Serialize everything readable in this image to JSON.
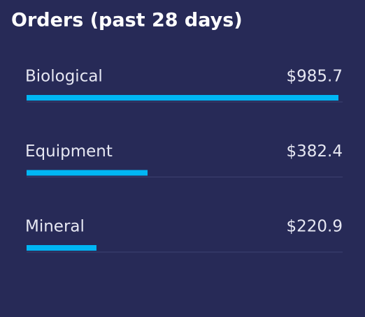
{
  "chart_data": {
    "type": "bar",
    "orientation": "horizontal",
    "title": "Orders (past 28 days)",
    "categories": [
      "Biological",
      "Equipment",
      "Mineral"
    ],
    "values": [
      985.7,
      382.4,
      220.9
    ],
    "value_labels": [
      "$985.7",
      "$382.4",
      "$220.9"
    ],
    "color": "#00b6f4"
  }
}
